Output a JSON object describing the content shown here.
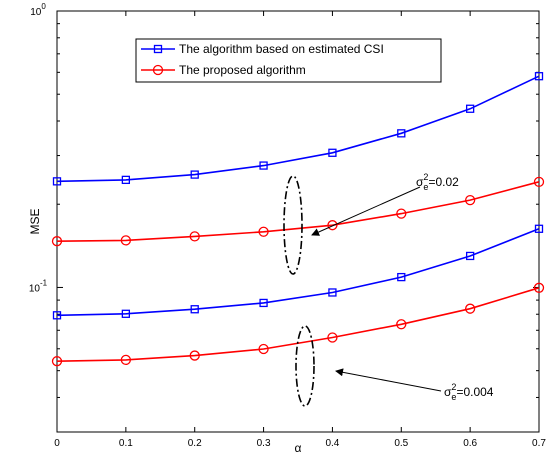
{
  "chart_data": {
    "type": "line",
    "title": "",
    "xlabel": "α",
    "ylabel": "MSE",
    "xlim": [
      0,
      0.7
    ],
    "ylim": [
      0.03,
      1
    ],
    "yscale": "log",
    "grid": false,
    "legend_position": "top-center",
    "xticks": [
      "0",
      "0.1",
      "0.2",
      "0.3",
      "0.4",
      "0.5",
      "0.6",
      "0.7"
    ],
    "yticks": [
      {
        "value": 0.1,
        "base": "10",
        "exp": "-1"
      },
      {
        "value": 1,
        "base": "10",
        "exp": "0"
      }
    ],
    "x": [
      0,
      0.1,
      0.2,
      0.3,
      0.4,
      0.5,
      0.6,
      0.7
    ],
    "series": [
      {
        "name": "The algorithm based on estimated CSI",
        "color": "#0000ff",
        "marker": "square",
        "values": [
          0.242,
          0.245,
          0.256,
          0.276,
          0.307,
          0.361,
          0.443,
          0.581
        ]
      },
      {
        "name": "The proposed algorithm",
        "color": "#ff0000",
        "marker": "circle",
        "values": [
          0.147,
          0.148,
          0.153,
          0.159,
          0.168,
          0.185,
          0.207,
          0.241
        ]
      },
      {
        "name": "The algorithm based on estimated CSI",
        "color": "#0000ff",
        "marker": "square",
        "values": [
          0.0793,
          0.0803,
          0.0834,
          0.0879,
          0.0959,
          0.109,
          0.13,
          0.163
        ]
      },
      {
        "name": "The proposed algorithm",
        "color": "#ff0000",
        "marker": "circle",
        "values": [
          0.0541,
          0.0547,
          0.0567,
          0.0599,
          0.0659,
          0.0736,
          0.0838,
          0.0997
        ]
      }
    ],
    "annotations": [
      {
        "base": "σ",
        "sup": "2",
        "sub": "e",
        "rest": "=0.02"
      },
      {
        "base": "σ",
        "sup": "2",
        "sub": "e",
        "rest": "=0.004"
      }
    ]
  }
}
